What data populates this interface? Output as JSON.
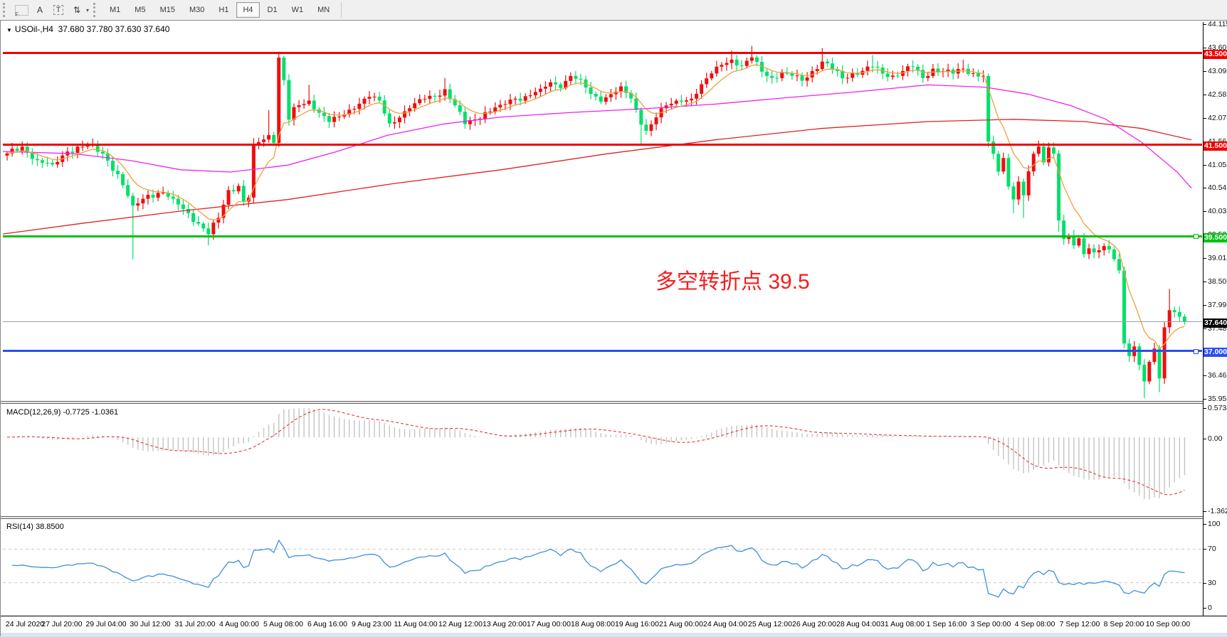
{
  "toolbar": {
    "icons": [
      {
        "name": "font-tool-icon",
        "glyph": "F"
      },
      {
        "name": "label-tool-icon",
        "glyph": "A"
      },
      {
        "name": "textbox-tool-icon",
        "glyph": "T"
      },
      {
        "name": "cycle-lines-icon",
        "glyph": "⇅"
      },
      {
        "name": "dropdown-caret-icon",
        "glyph": "▾"
      }
    ],
    "timeframes": [
      "M1",
      "M5",
      "M15",
      "M30",
      "H1",
      "H4",
      "D1",
      "W1",
      "MN"
    ],
    "active_timeframe": "H4"
  },
  "chart": {
    "title_symbol": "USOil-,H4",
    "title_ohlc": "37.680 37.780 37.630 37.640",
    "collapse_arrow": "▼",
    "macd_label": "MACD(12,26,9) -0.7725 -1.0361",
    "rsi_label": "RSI(14) 38.8500"
  },
  "annotation": {
    "text": "多空转折点 39.5",
    "color": "#f51d1d"
  },
  "price_axis_ticks": [
    "44.115",
    "43.605",
    "43.095",
    "42.585",
    "42.075",
    "41.565",
    "41.055",
    "40.545",
    "40.035",
    "39.525",
    "39.015",
    "38.505",
    "37.995",
    "37.485",
    "36.975",
    "36.465",
    "35.955"
  ],
  "macd_axis_ticks": [
    {
      "v": 0.5734,
      "label": "0.5734"
    },
    {
      "v": 0.0,
      "label": "0.00"
    },
    {
      "v": -1.3628,
      "label": "-1.3628"
    }
  ],
  "rsi_axis_ticks": [
    {
      "v": 100,
      "label": "100"
    },
    {
      "v": 70,
      "label": "70"
    },
    {
      "v": 30,
      "label": "30"
    },
    {
      "v": 0,
      "label": "0"
    }
  ],
  "x_labels": [
    "24 Jul 2020",
    "27 Jul 20:00",
    "29 Jul 04:00",
    "30 Jul 12:00",
    "31 Jul 20:00",
    "4 Aug 00:00",
    "5 Aug 08:00",
    "6 Aug 16:00",
    "9 Aug 23:00",
    "11 Aug 04:00",
    "12 Aug 12:00",
    "13 Aug 20:00",
    "17 Aug 00:00",
    "18 Aug 08:00",
    "19 Aug 16:00",
    "21 Aug 00:00",
    "24 Aug 04:00",
    "25 Aug 12:00",
    "26 Aug 20:00",
    "28 Aug 04:00",
    "31 Aug 08:00",
    "1 Sep 16:00",
    "3 Sep 00:00",
    "4 Sep 08:00",
    "7 Sep 12:00",
    "8 Sep 20:00",
    "10 Sep 00:00"
  ],
  "levels": [
    {
      "name": "resistance-43.5",
      "price": 43.5,
      "label": "43.500",
      "color": "#f00000",
      "width": 3,
      "handle": false
    },
    {
      "name": "resistance-41.5",
      "price": 41.5,
      "label": "41.500",
      "color": "#f00000",
      "width": 3,
      "handle": false
    },
    {
      "name": "support-39.5",
      "price": 39.5,
      "label": "39.500",
      "color": "#00c113",
      "width": 3,
      "handle": true
    },
    {
      "name": "support-37.0",
      "price": 37.0,
      "label": "37.000",
      "color": "#2b50ee",
      "width": 3,
      "handle": true
    }
  ],
  "bid_line": {
    "price": 37.64,
    "label": "37.640",
    "line_color": "#9aa0a6",
    "tag_bg": "#000000"
  },
  "chart_data": {
    "type": "candlestick",
    "symbol": "USOil",
    "period": "H4",
    "bars": 235,
    "x0": 6,
    "bar_spacing": 7.07,
    "body_width": 5,
    "main_ylim": [
      35.91,
      44.17
    ],
    "up_color": "#f00e0e",
    "down_color": "#00e06a",
    "close_anchors": [
      [
        0,
        41.3
      ],
      [
        3,
        41.45
      ],
      [
        6,
        41.15
      ],
      [
        9,
        41.05
      ],
      [
        12,
        41.35
      ],
      [
        16,
        41.5
      ],
      [
        19,
        41.3
      ],
      [
        22,
        40.85
      ],
      [
        25,
        40.15
      ],
      [
        28,
        40.4
      ],
      [
        31,
        40.45
      ],
      [
        33,
        40.3
      ],
      [
        36,
        40.0
      ],
      [
        40,
        39.55
      ],
      [
        42,
        39.9
      ],
      [
        44,
        40.5
      ],
      [
        46,
        40.6
      ],
      [
        47,
        40.25
      ],
      [
        48,
        40.35
      ],
      [
        49,
        41.5
      ],
      [
        50,
        41.55
      ],
      [
        52,
        41.7
      ],
      [
        53,
        41.55
      ],
      [
        54,
        43.4
      ],
      [
        55,
        42.9
      ],
      [
        56,
        42.05
      ],
      [
        57,
        42.3
      ],
      [
        58,
        42.35
      ],
      [
        60,
        42.45
      ],
      [
        62,
        42.2
      ],
      [
        64,
        42.0
      ],
      [
        66,
        42.1
      ],
      [
        68,
        42.25
      ],
      [
        70,
        42.4
      ],
      [
        72,
        42.55
      ],
      [
        74,
        42.45
      ],
      [
        76,
        41.95
      ],
      [
        78,
        42.1
      ],
      [
        80,
        42.3
      ],
      [
        83,
        42.5
      ],
      [
        85,
        42.55
      ],
      [
        87,
        42.7
      ],
      [
        89,
        42.35
      ],
      [
        91,
        41.95
      ],
      [
        93,
        42.05
      ],
      [
        95,
        42.2
      ],
      [
        98,
        42.35
      ],
      [
        101,
        42.5
      ],
      [
        103,
        42.55
      ],
      [
        106,
        42.7
      ],
      [
        108,
        42.85
      ],
      [
        110,
        42.75
      ],
      [
        112,
        43.0
      ],
      [
        114,
        42.9
      ],
      [
        116,
        42.6
      ],
      [
        118,
        42.45
      ],
      [
        120,
        42.6
      ],
      [
        122,
        42.75
      ],
      [
        124,
        42.5
      ],
      [
        126,
        41.95
      ],
      [
        127,
        41.8
      ],
      [
        129,
        42.1
      ],
      [
        131,
        42.35
      ],
      [
        134,
        42.45
      ],
      [
        136,
        42.5
      ],
      [
        138,
        42.8
      ],
      [
        140,
        43.05
      ],
      [
        142,
        43.25
      ],
      [
        144,
        43.35
      ],
      [
        146,
        43.2
      ],
      [
        148,
        43.4
      ],
      [
        150,
        43.1
      ],
      [
        152,
        42.95
      ],
      [
        154,
        43.05
      ],
      [
        156,
        43.0
      ],
      [
        158,
        42.9
      ],
      [
        160,
        43.1
      ],
      [
        162,
        43.3
      ],
      [
        164,
        43.15
      ],
      [
        166,
        42.95
      ],
      [
        168,
        43.05
      ],
      [
        170,
        43.1
      ],
      [
        172,
        43.2
      ],
      [
        174,
        43.05
      ],
      [
        176,
        43.0
      ],
      [
        178,
        43.1
      ],
      [
        180,
        43.2
      ],
      [
        182,
        42.95
      ],
      [
        184,
        43.15
      ],
      [
        186,
        43.1
      ],
      [
        188,
        43.05
      ],
      [
        190,
        43.15
      ],
      [
        192,
        43.05
      ],
      [
        194,
        43.0
      ],
      [
        195,
        41.55
      ],
      [
        196,
        41.3
      ],
      [
        197,
        40.9
      ],
      [
        198,
        41.2
      ],
      [
        199,
        40.6
      ],
      [
        200,
        40.3
      ],
      [
        201,
        40.7
      ],
      [
        202,
        40.4
      ],
      [
        203,
        40.9
      ],
      [
        204,
        41.3
      ],
      [
        205,
        41.45
      ],
      [
        206,
        41.1
      ],
      [
        207,
        41.45
      ],
      [
        208,
        41.3
      ],
      [
        209,
        39.85
      ],
      [
        210,
        39.45
      ],
      [
        211,
        39.5
      ],
      [
        212,
        39.3
      ],
      [
        213,
        39.45
      ],
      [
        214,
        39.1
      ],
      [
        215,
        39.25
      ],
      [
        216,
        39.15
      ],
      [
        217,
        39.2
      ],
      [
        218,
        39.3
      ],
      [
        219,
        39.2
      ],
      [
        220,
        39.0
      ],
      [
        221,
        38.75
      ],
      [
        222,
        37.15
      ],
      [
        223,
        36.9
      ],
      [
        224,
        37.1
      ],
      [
        225,
        36.7
      ],
      [
        226,
        36.35
      ],
      [
        227,
        36.75
      ],
      [
        228,
        37.05
      ],
      [
        229,
        36.4
      ],
      [
        230,
        37.5
      ],
      [
        231,
        37.9
      ],
      [
        232,
        37.85
      ],
      [
        233,
        37.75
      ],
      [
        234,
        37.64
      ]
    ],
    "wick_overrides": {
      "25": {
        "l": 39.0
      },
      "40": {
        "l": 39.3
      },
      "52": {
        "h": 42.25
      },
      "54": {
        "h": 43.45
      },
      "60": {
        "h": 42.8
      },
      "87": {
        "h": 42.95
      },
      "126": {
        "l": 41.5
      },
      "144": {
        "h": 43.55
      },
      "148": {
        "h": 43.65
      },
      "162": {
        "h": 43.6
      },
      "172": {
        "h": 43.45
      },
      "190": {
        "h": 43.35
      },
      "200": {
        "l": 40.0
      },
      "202": {
        "l": 39.9
      },
      "209": {
        "l": 39.6
      },
      "226": {
        "l": 35.97
      },
      "229": {
        "l": 36.1
      },
      "231": {
        "h": 38.35
      }
    },
    "ma_fast": {
      "period": 8,
      "color": "#eba13c",
      "type": "ema"
    },
    "ma_medium": {
      "color": "#ee22ee",
      "anchors": [
        [
          0,
          41.35
        ],
        [
          100,
          41.3
        ],
        [
          180,
          41.15
        ],
        [
          250,
          40.95
        ],
        [
          320,
          40.9
        ],
        [
          400,
          41.05
        ],
        [
          470,
          41.35
        ],
        [
          540,
          41.7
        ],
        [
          620,
          41.95
        ],
        [
          700,
          42.1
        ],
        [
          800,
          42.2
        ],
        [
          900,
          42.28
        ],
        [
          1000,
          42.38
        ],
        [
          1100,
          42.52
        ],
        [
          1200,
          42.65
        ],
        [
          1300,
          42.8
        ],
        [
          1380,
          42.75
        ],
        [
          1440,
          42.6
        ],
        [
          1500,
          42.35
        ],
        [
          1550,
          42.05
        ],
        [
          1600,
          41.55
        ],
        [
          1650,
          40.9
        ],
        [
          1670,
          40.55
        ]
      ]
    },
    "ma_slow": {
      "color": "#e02222",
      "anchors": [
        [
          0,
          39.55
        ],
        [
          110,
          39.78
        ],
        [
          250,
          40.05
        ],
        [
          400,
          40.3
        ],
        [
          550,
          40.65
        ],
        [
          700,
          40.95
        ],
        [
          850,
          41.3
        ],
        [
          1000,
          41.6
        ],
        [
          1150,
          41.85
        ],
        [
          1300,
          42.0
        ],
        [
          1420,
          42.05
        ],
        [
          1520,
          42.0
        ],
        [
          1600,
          41.85
        ],
        [
          1670,
          41.6
        ]
      ]
    },
    "macd": {
      "fast": 12,
      "slow": 26,
      "signal": 9,
      "hist_color": "#c4c4c4",
      "signal_color": "#e03535",
      "ylim": [
        -1.46,
        0.63
      ]
    },
    "rsi": {
      "period": 14,
      "color": "#3c8fdc",
      "levels": [
        70,
        30
      ],
      "level_color": "#c8c8c8",
      "ylim": [
        0,
        100
      ]
    }
  }
}
